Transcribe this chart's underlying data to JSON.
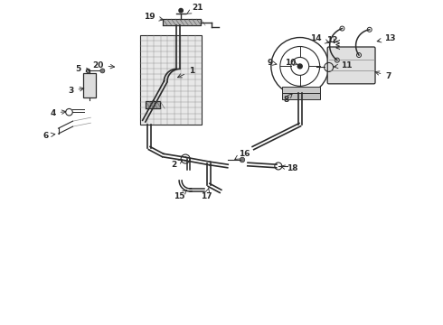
{
  "bg_color": "#ffffff",
  "line_color": "#2a2a2a",
  "figsize": [
    4.9,
    3.6
  ],
  "dpi": 100,
  "xlim": [
    0,
    4.9
  ],
  "ylim": [
    0,
    3.6
  ],
  "label_items": [
    {
      "num": "21",
      "xt": 2.18,
      "yt": 3.52,
      "xp": 2.06,
      "yp": 3.45
    },
    {
      "num": "19",
      "xt": 1.65,
      "yt": 3.42,
      "xp": 1.84,
      "yp": 3.38
    },
    {
      "num": "20",
      "xt": 1.08,
      "yt": 2.88,
      "xp": 1.3,
      "yp": 2.86
    },
    {
      "num": "1",
      "xt": 2.12,
      "yt": 2.82,
      "xp": 1.93,
      "yp": 2.73
    },
    {
      "num": "2",
      "xt": 1.92,
      "yt": 1.77,
      "xp": 2.05,
      "yp": 1.85
    },
    {
      "num": "3",
      "xt": 0.78,
      "yt": 2.6,
      "xp": 0.96,
      "yp": 2.63
    },
    {
      "num": "4",
      "xt": 0.58,
      "yt": 2.35,
      "xp": 0.76,
      "yp": 2.37
    },
    {
      "num": "5",
      "xt": 0.86,
      "yt": 2.84,
      "xp": 1.03,
      "yp": 2.82
    },
    {
      "num": "6",
      "xt": 0.5,
      "yt": 2.1,
      "xp": 0.64,
      "yp": 2.12
    },
    {
      "num": "7",
      "xt": 4.3,
      "yt": 2.76,
      "xp": 4.12,
      "yp": 2.82
    },
    {
      "num": "8",
      "xt": 3.17,
      "yt": 2.5,
      "xp": 3.24,
      "yp": 2.57
    },
    {
      "num": "9",
      "xt": 2.99,
      "yt": 2.91,
      "xp": 3.07,
      "yp": 2.89
    },
    {
      "num": "10",
      "xt": 3.21,
      "yt": 2.91,
      "xp": 3.3,
      "yp": 2.89
    },
    {
      "num": "11",
      "xt": 3.84,
      "yt": 2.88,
      "xp": 3.66,
      "yp": 2.86
    },
    {
      "num": "12",
      "xt": 3.68,
      "yt": 3.16,
      "xp": 3.73,
      "yp": 3.1
    },
    {
      "num": "13",
      "xt": 4.32,
      "yt": 3.18,
      "xp": 4.14,
      "yp": 3.14
    },
    {
      "num": "14",
      "xt": 3.5,
      "yt": 3.18,
      "xp": 3.68,
      "yp": 3.12
    },
    {
      "num": "15",
      "xt": 1.98,
      "yt": 1.42,
      "xp": 2.07,
      "yp": 1.5
    },
    {
      "num": "16",
      "xt": 2.7,
      "yt": 1.9,
      "xp": 2.59,
      "yp": 1.83
    },
    {
      "num": "17",
      "xt": 2.28,
      "yt": 1.42,
      "xp": 2.31,
      "yp": 1.52
    },
    {
      "num": "18",
      "xt": 3.24,
      "yt": 1.73,
      "xp": 3.1,
      "yp": 1.76
    }
  ]
}
